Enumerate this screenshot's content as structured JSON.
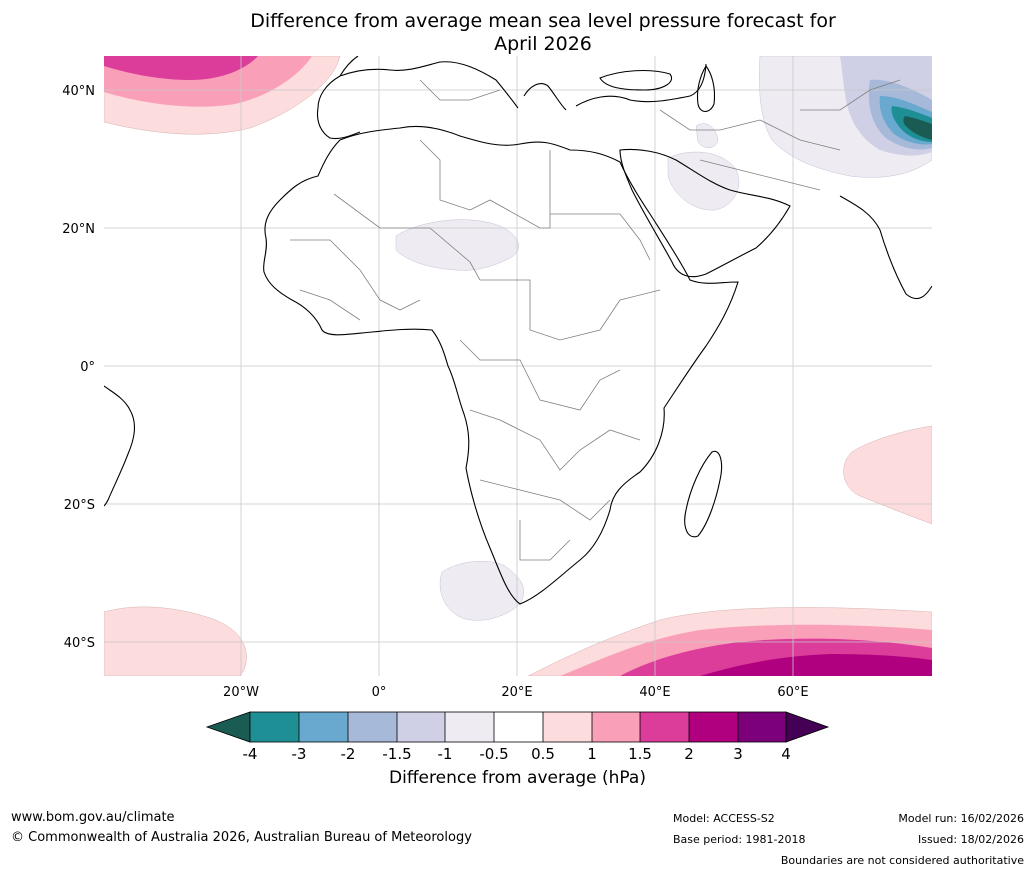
{
  "title": {
    "line1": "Difference from average mean sea level pressure forecast for",
    "line2": "April 2026"
  },
  "axes": {
    "lat_labels": [
      "40°N",
      "20°N",
      "0°",
      "20°S",
      "40°S"
    ],
    "lon_labels": [
      "20°W",
      "0°",
      "20°E",
      "40°E",
      "60°E"
    ]
  },
  "colorbar": {
    "ticks": [
      "-4",
      "-3",
      "-2",
      "-1.5",
      "-1",
      "-0.5",
      "0.5",
      "1",
      "1.5",
      "2",
      "3",
      "4"
    ],
    "colors": [
      "#1a5c54",
      "#1f8f96",
      "#69a8cf",
      "#a6b9d8",
      "#cfd0e6",
      "#eeebf3",
      "#ffffff",
      "#fcdcdc",
      "#f9a0b8",
      "#dc3d9a",
      "#b0007f",
      "#7b0079",
      "#440054"
    ],
    "title": "Difference from average (hPa)"
  },
  "footer": {
    "website": "www.bom.gov.au/climate",
    "copyright": "© Commonwealth of Australia 2026, Australian Bureau of Meteorology",
    "model": "Model: ACCESS-S2",
    "base_period": "Base period: 1981-2018",
    "model_run": "Model run: 16/02/2026",
    "issued": "Issued: 18/02/2026",
    "disclaimer": "Boundaries are not considered authoritative"
  }
}
